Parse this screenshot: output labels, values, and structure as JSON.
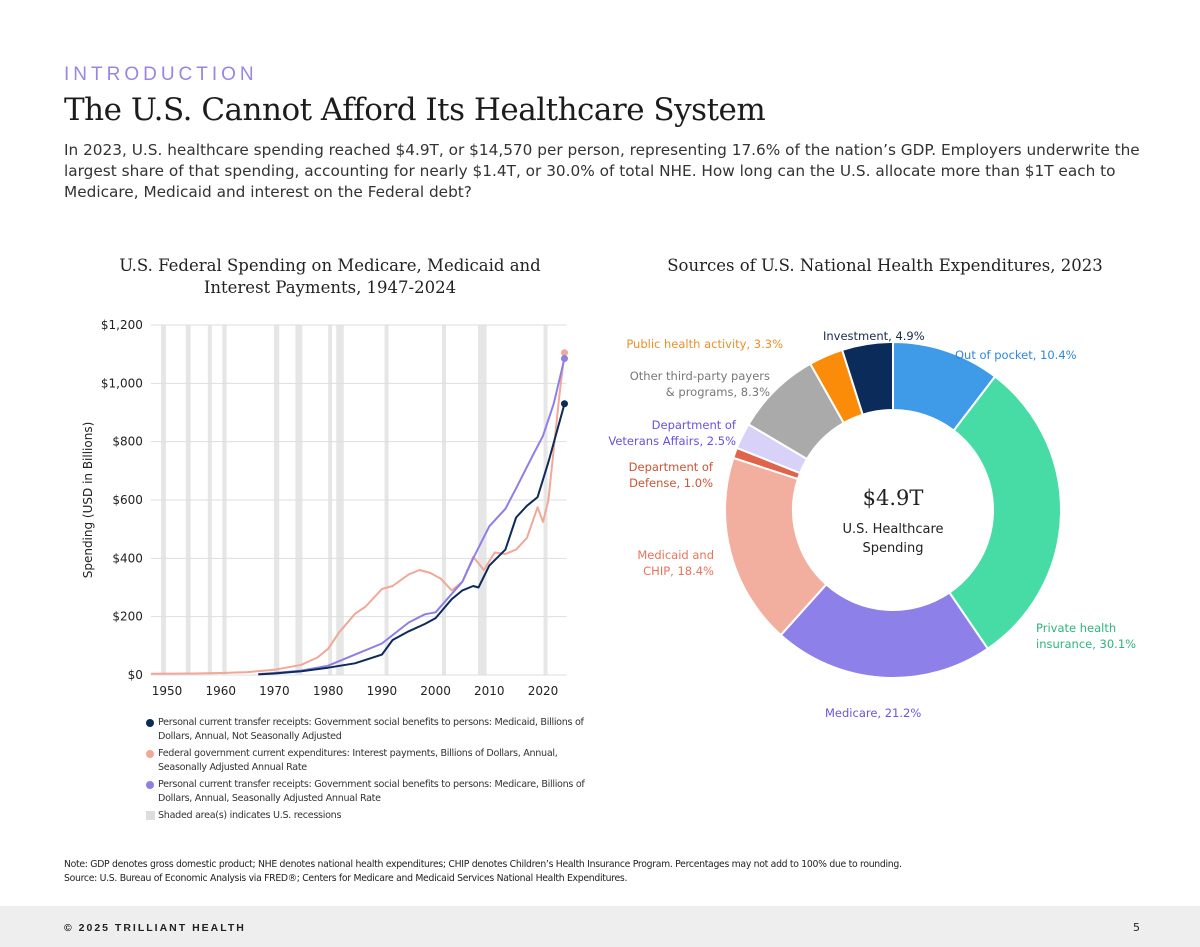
{
  "header": {
    "eyebrow": "INTRODUCTION",
    "title": "The U.S. Cannot Afford Its Healthcare System",
    "intro": "In 2023, U.S. healthcare spending reached $4.9T, or $14,570 per person, representing 17.6% of the nation’s GDP. Employers underwrite the largest share of that spending, accounting for nearly $1.4T, or 30.0% of total NHE. How long can the U.S. allocate more than $1T each to Medicare, Medicaid and interest on the Federal debt?"
  },
  "chart_data": [
    {
      "type": "line",
      "title_line1": "U.S. Federal Spending on Medicare, Medicaid and",
      "title_line2": "Interest Payments, 1947-2024",
      "ylabel": "Spending (USD in Billions)",
      "xlim": [
        1947,
        2024
      ],
      "ylim": [
        0,
        1200
      ],
      "grid": "horizontal",
      "yticks": [
        {
          "v": 0,
          "label": "$0"
        },
        {
          "v": 200,
          "label": "$200"
        },
        {
          "v": 400,
          "label": "$400"
        },
        {
          "v": 600,
          "label": "$600"
        },
        {
          "v": 800,
          "label": "$800"
        },
        {
          "v": 1000,
          "label": "$1,000"
        },
        {
          "v": 1200,
          "label": "$1,200"
        }
      ],
      "xticks": [
        "1950",
        "1960",
        "1970",
        "1980",
        "1990",
        "2000",
        "2010",
        "2020"
      ],
      "recessions": [
        [
          1948.9,
          1949.8
        ],
        [
          1953.5,
          1954.4
        ],
        [
          1957.6,
          1958.3
        ],
        [
          1960.3,
          1961.1
        ],
        [
          1969.9,
          1970.9
        ],
        [
          1973.9,
          1975.2
        ],
        [
          1980.0,
          1980.5
        ],
        [
          1981.5,
          1982.9
        ],
        [
          1990.5,
          1991.2
        ],
        [
          2001.2,
          2001.9
        ],
        [
          2007.9,
          2009.5
        ],
        [
          2020.1,
          2020.4
        ]
      ],
      "legend": {
        "placement": "bottom",
        "recession_label": "Shaded area(s) indicates U.S. recessions"
      },
      "series": [
        {
          "name": "Personal current transfer receipts: Government social benefits to persons: Medicaid, Billions of Dollars, Annual, Not Seasonally Adjusted",
          "color": "#0d2b5a",
          "x": [
            1967,
            1970,
            1975,
            1980,
            1985,
            1990,
            1992,
            1995,
            1998,
            2000,
            2003,
            2005,
            2007,
            2008,
            2010,
            2013,
            2015,
            2017,
            2019,
            2021,
            2024
          ],
          "y": [
            2,
            5,
            13,
            25,
            40,
            70,
            120,
            150,
            175,
            195,
            260,
            290,
            305,
            300,
            375,
            430,
            540,
            580,
            610,
            730,
            930
          ]
        },
        {
          "name": "Federal government current expenditures: Interest payments, Billions of Dollars, Annual, Seasonally Adjusted Annual Rate",
          "color": "#f0a898",
          "x": [
            1947,
            1955,
            1960,
            1965,
            1970,
            1975,
            1978,
            1980,
            1982,
            1985,
            1987,
            1990,
            1992,
            1995,
            1997,
            1999,
            2001,
            2003,
            2005,
            2007,
            2009,
            2011,
            2013,
            2015,
            2017,
            2019,
            2020,
            2021,
            2023,
            2024
          ],
          "y": [
            4,
            5,
            7,
            10,
            18,
            35,
            60,
            90,
            145,
            210,
            235,
            295,
            305,
            345,
            360,
            350,
            330,
            290,
            320,
            405,
            360,
            420,
            415,
            430,
            470,
            575,
            525,
            600,
            950,
            1105
          ]
        },
        {
          "name": "Personal current transfer receipts: Government social benefits to persons: Medicare, Billions of Dollars, Annual, Seasonally Adjusted Annual Rate",
          "color": "#8e7fe6",
          "x": [
            1967,
            1970,
            1975,
            1980,
            1985,
            1990,
            1995,
            1998,
            2000,
            2005,
            2007,
            2010,
            2013,
            2015,
            2018,
            2020,
            2022,
            2024
          ],
          "y": [
            3,
            7,
            15,
            32,
            70,
            108,
            180,
            208,
            215,
            320,
            400,
            510,
            570,
            640,
            750,
            820,
            930,
            1085
          ]
        }
      ]
    },
    {
      "type": "pie",
      "donut": true,
      "title": "Sources of U.S. National Health Expenditures, 2023",
      "center_value": "$4.9T",
      "center_label": "U.S. Healthcare Spending",
      "slices": [
        {
          "label": "Out of pocket, 10.4%",
          "value": 10.4,
          "color": "#3f9be8",
          "text_color": "#2f86d8"
        },
        {
          "label1": "Private health",
          "label2": "insurance, 30.1%",
          "value": 30.1,
          "color": "#47dca5",
          "text_color": "#2fb37f"
        },
        {
          "label": "Medicare, 21.2%",
          "value": 21.2,
          "color": "#8d80e8",
          "text_color": "#6d55dc"
        },
        {
          "label1": "Medicaid and",
          "label2": "CHIP, 18.4%",
          "value": 18.4,
          "color": "#f2afa0",
          "text_color": "#e8735a"
        },
        {
          "label1": "Department of",
          "label2": "Defense, 1.0%",
          "value": 1.0,
          "color": "#e0634a",
          "text_color": "#cf5234"
        },
        {
          "label1": "Department of",
          "label2": "Veterans Affairs, 2.5%",
          "value": 2.5,
          "color": "#d8d2f8",
          "text_color": "#6b4fe0"
        },
        {
          "label1": "Other third-party payers",
          "label2": "& programs, 8.3%",
          "value": 8.3,
          "color": "#aaaaaa",
          "text_color": "#777777"
        },
        {
          "label": "Public health activity, 3.3%",
          "value": 3.3,
          "color": "#fb8c0a",
          "text_color": "#e8902a"
        },
        {
          "label": "Investment, 4.9%",
          "value": 4.9,
          "color": "#0b2c5b",
          "text_color": "#1a2a4a"
        }
      ]
    }
  ],
  "note": {
    "line1": "Note: GDP denotes gross domestic product; NHE denotes national health expenditures; CHIP denotes Children’s Health Insurance Program. Percentages may not add to 100% due to rounding.",
    "line2": "Source: U.S. Bureau of Economic Analysis via FRED®; Centers for Medicare and Medicaid Services National Health Expenditures."
  },
  "footer": {
    "copyright": "© 2025 TRILLIANT HEALTH",
    "page": "5"
  }
}
